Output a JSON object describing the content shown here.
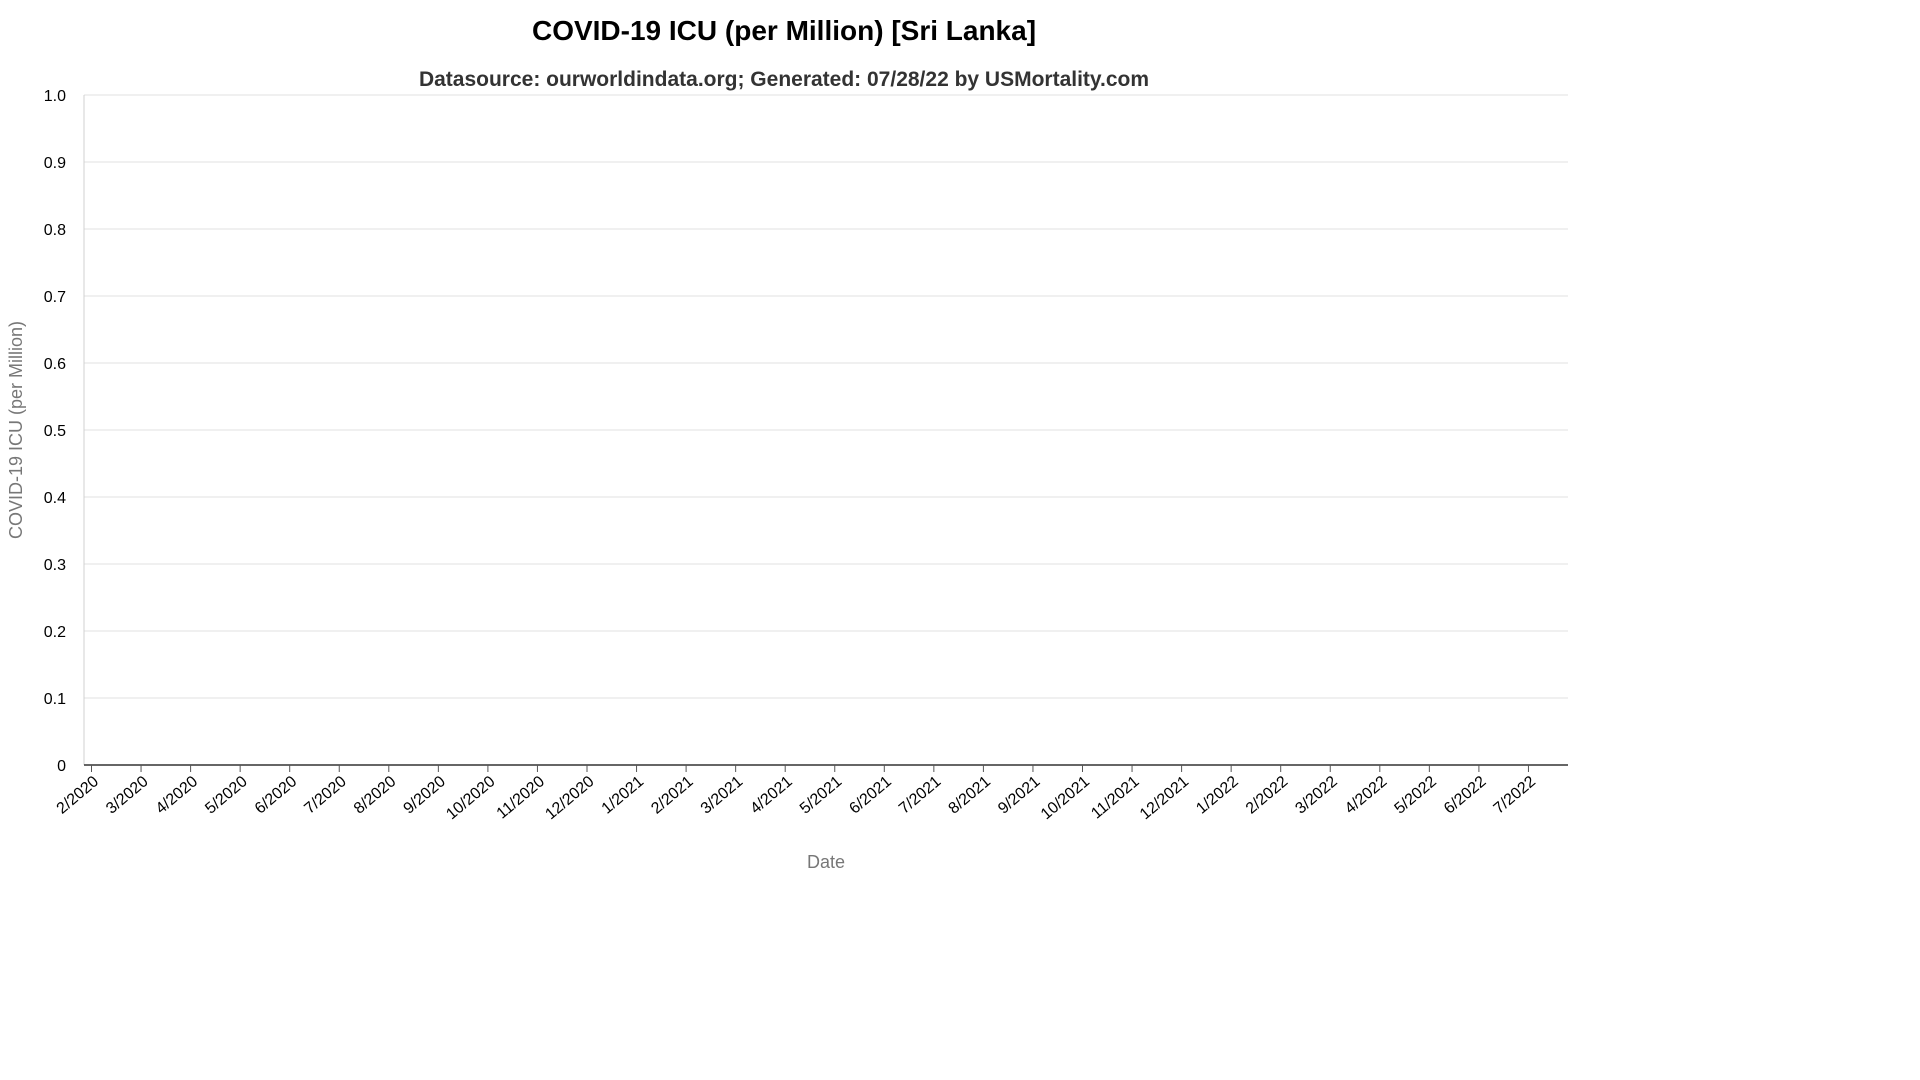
{
  "chart_data": {
    "type": "line",
    "title": "COVID-19 ICU (per Million) [Sri Lanka]",
    "subtitle": "Datasource: ourworldindata.org; Generated: 07/28/22 by USMortality.com",
    "xlabel": "Date",
    "ylabel": "COVID-19 ICU (per Million)",
    "ylim": [
      0,
      1.0
    ],
    "yticks": [
      "0",
      "0.1",
      "0.2",
      "0.3",
      "0.4",
      "0.5",
      "0.6",
      "0.7",
      "0.8",
      "0.9",
      "1.0"
    ],
    "xticks": [
      "2/2020",
      "3/2020",
      "4/2020",
      "5/2020",
      "6/2020",
      "7/2020",
      "8/2020",
      "9/2020",
      "10/2020",
      "11/2020",
      "12/2020",
      "1/2021",
      "2/2021",
      "3/2021",
      "4/2021",
      "5/2021",
      "6/2021",
      "7/2021",
      "8/2021",
      "9/2021",
      "10/2021",
      "11/2021",
      "12/2021",
      "1/2022",
      "2/2022",
      "3/2022",
      "4/2022",
      "5/2022",
      "6/2022",
      "7/2022"
    ],
    "grid": true,
    "series": [
      {
        "values": []
      }
    ]
  }
}
